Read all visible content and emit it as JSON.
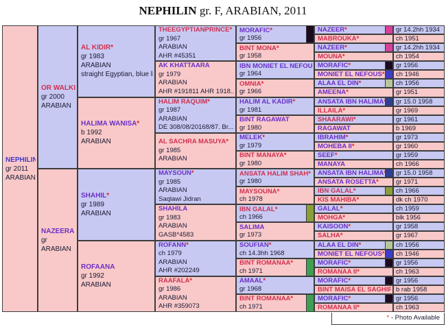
{
  "title": {
    "name": "NEPHILIN",
    "rest": " gr. F, ARABIAN, 2011"
  },
  "legend": {
    "star": "*",
    "text": " - Photo Available"
  },
  "palette": {
    "cell_blue": "#c7c9f2",
    "cell_pink": "#f9c9c9",
    "border": "#3c3c3c",
    "name_purple": "#6b30c7",
    "name_red": "#d02f4f",
    "name_blue": "#4038d0",
    "star_red": "#e02525",
    "detail_text": "#1a1a33"
  },
  "pedigree": {
    "gen1": [
      {
        "name": "NEPHILIN",
        "star": false,
        "color": "blue",
        "details": [
          "gr 2011",
          "ARABIAN"
        ]
      }
    ],
    "gen2": [
      {
        "name": "OR WALKIR",
        "star": true,
        "color": "red",
        "details": [
          "gr 2000",
          "ARABIAN"
        ]
      },
      {
        "name": "NAZEERA",
        "star": false,
        "color": "purple",
        "details": [
          "gr",
          "ARABIAN"
        ]
      }
    ],
    "gen3": [
      {
        "name": "AL KIDIR",
        "star": true,
        "color": "red",
        "details": [
          "gr 1983",
          "ARABIAN",
          "straight Egyptian, blue li..."
        ]
      },
      {
        "name": "HALIMA WANISA",
        "star": true,
        "color": "purple",
        "details": [
          "b 1992",
          "ARABIAN"
        ]
      },
      {
        "name": "SHAHIL",
        "star": true,
        "color": "purple",
        "details": [
          "gr 1989",
          "ARABIAN"
        ]
      },
      {
        "name": "ROFAANA",
        "star": false,
        "color": "purple",
        "details": [
          "gr 1992",
          "ARABIAN"
        ]
      }
    ],
    "gen4": [
      {
        "name": "THEEGYPTIANPRINCE",
        "star": true,
        "color": "red",
        "details": [
          "gr 1967",
          "ARABIAN",
          "AHR #45351"
        ]
      },
      {
        "name": "AK KHATTAARA",
        "star": false,
        "color": "purple",
        "details": [
          "gr 1979",
          "ARABIAN",
          "AHR #191811 AHR 1918..."
        ]
      },
      {
        "name": "HALIM RAQUIM",
        "star": true,
        "color": "red",
        "details": [
          "gr 1987",
          "ARABIAN",
          "DE 308/08/20168/87. Br..."
        ]
      },
      {
        "name": "AL SACHRA MASUYA",
        "star": true,
        "color": "red",
        "details": [
          "gr 1985",
          "ARABIAN"
        ]
      },
      {
        "name": "MAYSOUN",
        "star": true,
        "color": "purple",
        "details": [
          "gr 1985",
          "ARABIAN",
          "Saqlawi Jidran"
        ]
      },
      {
        "name": "SHAHILA",
        "star": false,
        "color": "purple",
        "details": [
          "gr 1983",
          "ARABIAN",
          "GASB*4583"
        ]
      },
      {
        "name": "ROFANN",
        "star": true,
        "color": "purple",
        "details": [
          "ch 1979",
          "ARABIAN",
          "AHR #202249"
        ]
      },
      {
        "name": "RAAFALA",
        "star": true,
        "color": "red",
        "details": [
          "gr 1986",
          "ARABIAN",
          "AHR #359073"
        ]
      }
    ],
    "gen5": [
      {
        "name": "MORAFIC",
        "star": true,
        "color": "purple",
        "date": "gr 1956",
        "thumb": "#1c0b1e"
      },
      {
        "name": "BINT MONA",
        "star": true,
        "color": "red",
        "date": "gr 1958",
        "thumb": null
      },
      {
        "name": "IBN MONIET EL NEFOUS",
        "star": true,
        "color": "purple",
        "date": "gr 1964",
        "thumb": null
      },
      {
        "name": "OMNIA",
        "star": true,
        "color": "red",
        "date": "gr 1966",
        "thumb": null
      },
      {
        "name": "HALIM AL KADIR",
        "star": true,
        "color": "purple",
        "date": "gr 1981",
        "thumb": null
      },
      {
        "name": "BINT RAGAWAT",
        "star": false,
        "color": "purple",
        "date": "gr 1980",
        "thumb": null
      },
      {
        "name": "MELEK",
        "star": true,
        "color": "purple",
        "date": "gr 1979",
        "thumb": null
      },
      {
        "name": "BINT MANAYA",
        "star": true,
        "color": "red",
        "date": "gr 1980",
        "thumb": null
      },
      {
        "name": "ANSATA HALIM SHAH",
        "star": true,
        "color": "red",
        "date": "gr 1980",
        "thumb": null
      },
      {
        "name": "MAYSOUNA",
        "star": true,
        "color": "red",
        "date": "ch 1978",
        "thumb": null
      },
      {
        "name": "IBN GALAL",
        "star": true,
        "color": "red",
        "date": "ch 1966",
        "thumb": "#8a9e3a"
      },
      {
        "name": "SALIMA",
        "star": false,
        "color": "purple",
        "date": "gr 1973",
        "thumb": null
      },
      {
        "name": "SOUFIAN",
        "star": true,
        "color": "purple",
        "date": "ch 14.3hh 1968",
        "thumb": null
      },
      {
        "name": "BINT ROMANAA",
        "star": true,
        "color": "red",
        "date": "ch 1971",
        "thumb": "#3f9e52"
      },
      {
        "name": "AMAAL",
        "star": true,
        "color": "purple",
        "date": "gr 1968",
        "thumb": null
      },
      {
        "name": "BINT ROMANAA",
        "star": true,
        "color": "red",
        "date": "ch 1971",
        "thumb": "#3f9e52"
      }
    ],
    "gen6": [
      {
        "name": "NAZEER",
        "star": true,
        "color": "purple",
        "date": "gr 14.2hh 1934",
        "thumb": "#d8409a"
      },
      {
        "name": "MABROUKA",
        "star": true,
        "color": "red",
        "date": "ch 1951",
        "thumb": null
      },
      {
        "name": "NAZEER",
        "star": true,
        "color": "purple",
        "date": "gr 14.2hh 1934",
        "thumb": "#d8409a"
      },
      {
        "name": "MOUNA",
        "star": true,
        "color": "red",
        "date": "ch 1954",
        "thumb": null
      },
      {
        "name": "MORAFIC",
        "star": true,
        "color": "purple",
        "date": "gr 1956",
        "thumb": "#1c0b1e"
      },
      {
        "name": "MONIET EL NEFOUS",
        "star": true,
        "color": "purple",
        "date": "ch 1946",
        "thumb": "#3d3ccc"
      },
      {
        "name": "ALAA EL DIN",
        "star": true,
        "color": "purple",
        "date": "ch 1956",
        "thumb": "#b5c69a"
      },
      {
        "name": "AMEENA",
        "star": true,
        "color": "purple",
        "date": "gr 1951",
        "thumb": null
      },
      {
        "name": "ANSATA IBN HALIMA",
        "star": true,
        "color": "purple",
        "date": "gr 15.0 1958",
        "thumb": "#2e3f94"
      },
      {
        "name": "ILLAILA",
        "star": true,
        "color": "red",
        "date": "gr 1969",
        "thumb": null
      },
      {
        "name": "SHAARAWI",
        "star": true,
        "color": "red",
        "date": "gr 1961",
        "thumb": null
      },
      {
        "name": "RAGAWAT",
        "star": false,
        "color": "purple",
        "date": "b 1969",
        "thumb": null
      },
      {
        "name": "IBRAHIM",
        "star": true,
        "color": "purple",
        "date": "gr 1973",
        "thumb": null
      },
      {
        "name": "MOHEBA II",
        "star": true,
        "color": "purple",
        "date": "gr 1960",
        "thumb": null
      },
      {
        "name": "SEEF",
        "star": true,
        "color": "purple",
        "date": "gr 1959",
        "thumb": null
      },
      {
        "name": "MANAYA",
        "star": false,
        "color": "purple",
        "date": "ch 1966",
        "thumb": null
      },
      {
        "name": "ANSATA IBN HALIMA",
        "star": true,
        "color": "purple",
        "date": "gr 15.0 1958",
        "thumb": "#2e3f94"
      },
      {
        "name": "ANSATA ROSETTA",
        "star": true,
        "color": "purple",
        "date": "gr 1971",
        "thumb": null
      },
      {
        "name": "IBN GALAL",
        "star": true,
        "color": "red",
        "date": "ch 1966",
        "thumb": "#8a9e3a"
      },
      {
        "name": "KIS MAHIBA",
        "star": true,
        "color": "red",
        "date": "dk ch 1970",
        "thumb": null
      },
      {
        "name": "GALAL",
        "star": true,
        "color": "purple",
        "date": "ch 1959",
        "thumb": null
      },
      {
        "name": "MOHGA",
        "star": true,
        "color": "red",
        "date": "blk 1956",
        "thumb": null
      },
      {
        "name": "KAISOON",
        "star": true,
        "color": "purple",
        "date": "gr 1958",
        "thumb": null
      },
      {
        "name": "SALHA",
        "star": true,
        "color": "red",
        "date": "gr 1967",
        "thumb": null
      },
      {
        "name": "ALAA EL DIN",
        "star": true,
        "color": "purple",
        "date": "ch 1956",
        "thumb": "#b5c69a"
      },
      {
        "name": "MONIET EL NEFOUS",
        "star": true,
        "color": "purple",
        "date": "ch 1946",
        "thumb": "#3d3ccc"
      },
      {
        "name": "MORAFIC",
        "star": true,
        "color": "purple",
        "date": "gr 1956",
        "thumb": "#1c0b1e"
      },
      {
        "name": "ROMANAA II",
        "star": true,
        "color": "red",
        "date": "ch 1963",
        "thumb": null
      },
      {
        "name": "MORAFIC",
        "star": true,
        "color": "purple",
        "date": "gr 1956",
        "thumb": "#1c0b1e"
      },
      {
        "name": "BINT MAISA EL SAGHIRA",
        "star": true,
        "color": "red",
        "date": "b rab 1958",
        "thumb": null
      },
      {
        "name": "MORAFIC",
        "star": true,
        "color": "purple",
        "date": "gr 1956",
        "thumb": "#1c0b1e"
      },
      {
        "name": "ROMANAA II",
        "star": true,
        "color": "red",
        "date": "ch 1963",
        "thumb": null
      }
    ]
  }
}
